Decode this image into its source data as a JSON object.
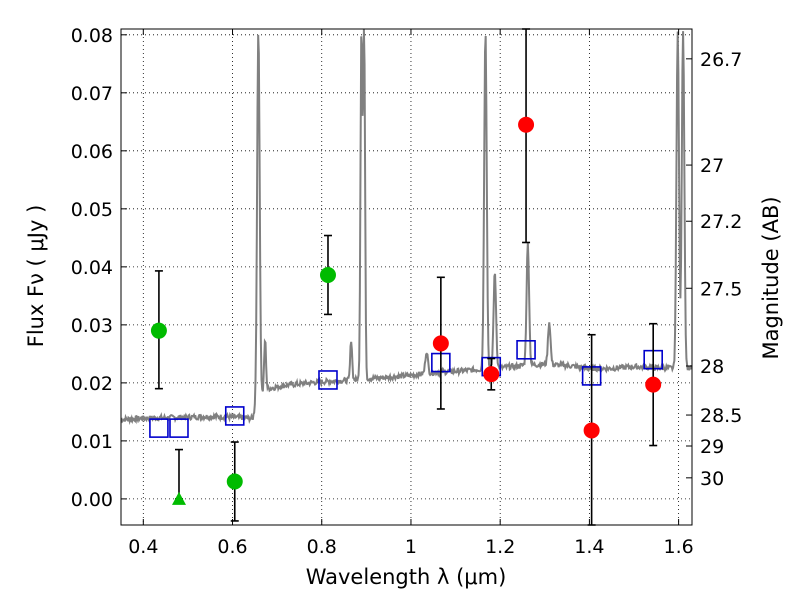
{
  "chart_data": {
    "type": "scatter",
    "xlabel": "Wavelength  λ (μm)",
    "ylabel": "Flux  Fν  ( μJy )",
    "right_ylabel": "Magnitude (AB)",
    "xlim": [
      0.35,
      1.63
    ],
    "ylim": [
      -0.0045,
      0.081
    ],
    "grid": true,
    "x_ticks": [
      {
        "v": 0.4,
        "label": "0.4"
      },
      {
        "v": 0.6,
        "label": "0.6"
      },
      {
        "v": 0.8,
        "label": "0.8"
      },
      {
        "v": 1.0,
        "label": "1"
      },
      {
        "v": 1.2,
        "label": "1.2"
      },
      {
        "v": 1.4,
        "label": "1.4"
      },
      {
        "v": 1.6,
        "label": "1.6"
      }
    ],
    "y_ticks": [
      {
        "v": 0.0,
        "label": "0.00"
      },
      {
        "v": 0.01,
        "label": "0.01"
      },
      {
        "v": 0.02,
        "label": "0.02"
      },
      {
        "v": 0.03,
        "label": "0.03"
      },
      {
        "v": 0.04,
        "label": "0.04"
      },
      {
        "v": 0.05,
        "label": "0.05"
      },
      {
        "v": 0.06,
        "label": "0.06"
      },
      {
        "v": 0.07,
        "label": "0.07"
      },
      {
        "v": 0.08,
        "label": "0.08"
      }
    ],
    "right_ticks": [
      {
        "mag": 26.7,
        "label": "26.7"
      },
      {
        "mag": 27,
        "label": "27"
      },
      {
        "mag": 27.2,
        "label": "27.2"
      },
      {
        "mag": 27.5,
        "label": "27.5"
      },
      {
        "mag": 28,
        "label": "28"
      },
      {
        "mag": 28.5,
        "label": "28.5"
      },
      {
        "mag": 29,
        "label": "29"
      },
      {
        "mag": 30,
        "label": "30"
      }
    ],
    "green_points": [
      {
        "x": 0.435,
        "y": 0.029,
        "lo": 0.019,
        "hi": 0.0393
      },
      {
        "x": 0.605,
        "y": 0.003,
        "lo": -0.0038,
        "hi": 0.0098
      },
      {
        "x": 0.814,
        "y": 0.0386,
        "lo": 0.0318,
        "hi": 0.0454
      }
    ],
    "green_upper_limit": {
      "x": 0.48,
      "y": 0.0,
      "hi": 0.0085
    },
    "red_points": [
      {
        "x": 1.067,
        "y": 0.0268,
        "lo": 0.0155,
        "hi": 0.0382
      },
      {
        "x": 1.18,
        "y": 0.0215,
        "lo": 0.0188,
        "hi": 0.0242
      },
      {
        "x": 1.258,
        "y": 0.0645,
        "lo": 0.0442,
        "hi": 0.081
      },
      {
        "x": 1.405,
        "y": 0.0118,
        "lo": -0.0045,
        "hi": 0.0283
      },
      {
        "x": 1.543,
        "y": 0.0197,
        "lo": 0.0092,
        "hi": 0.0302
      }
    ],
    "model_points": [
      {
        "x": 0.435,
        "y": 0.0122
      },
      {
        "x": 0.48,
        "y": 0.0122
      },
      {
        "x": 0.605,
        "y": 0.0143
      },
      {
        "x": 0.814,
        "y": 0.0205
      },
      {
        "x": 1.067,
        "y": 0.0235
      },
      {
        "x": 1.18,
        "y": 0.0228
      },
      {
        "x": 1.258,
        "y": 0.0257
      },
      {
        "x": 1.405,
        "y": 0.0212
      },
      {
        "x": 1.543,
        "y": 0.024
      }
    ],
    "model_spectrum": {
      "continuum": [
        [
          0.35,
          0.0137
        ],
        [
          0.4,
          0.0139
        ],
        [
          0.45,
          0.014
        ],
        [
          0.5,
          0.0141
        ],
        [
          0.55,
          0.0142
        ],
        [
          0.6,
          0.0141
        ],
        [
          0.63,
          0.014
        ],
        [
          0.645,
          0.0138
        ],
        [
          0.655,
          0.017
        ],
        [
          0.68,
          0.019
        ],
        [
          0.72,
          0.0196
        ],
        [
          0.76,
          0.0199
        ],
        [
          0.8,
          0.0202
        ],
        [
          0.85,
          0.0204
        ],
        [
          0.9,
          0.0207
        ],
        [
          0.95,
          0.021
        ],
        [
          1.0,
          0.0213
        ],
        [
          1.05,
          0.0218
        ],
        [
          1.1,
          0.022
        ],
        [
          1.15,
          0.0223
        ],
        [
          1.2,
          0.0226
        ],
        [
          1.25,
          0.023
        ],
        [
          1.3,
          0.0232
        ],
        [
          1.35,
          0.023
        ],
        [
          1.4,
          0.0225
        ],
        [
          1.45,
          0.0225
        ],
        [
          1.5,
          0.0228
        ],
        [
          1.55,
          0.0226
        ],
        [
          1.6,
          0.0225
        ],
        [
          1.63,
          0.0226
        ]
      ],
      "emission_lines": [
        {
          "x": 0.658,
          "peak": 0.081,
          "w": 0.004
        },
        {
          "x": 0.673,
          "peak": 0.0275,
          "w": 0.003
        },
        {
          "x": 0.866,
          "peak": 0.0275,
          "w": 0.003
        },
        {
          "x": 0.889,
          "peak": 0.081,
          "w": 0.003
        },
        {
          "x": 0.895,
          "peak": 0.081,
          "w": 0.003
        },
        {
          "x": 1.035,
          "peak": 0.0255,
          "w": 0.004
        },
        {
          "x": 1.167,
          "peak": 0.081,
          "w": 0.004
        },
        {
          "x": 1.188,
          "peak": 0.039,
          "w": 0.004
        },
        {
          "x": 1.262,
          "peak": 0.044,
          "w": 0.004
        },
        {
          "x": 1.31,
          "peak": 0.0305,
          "w": 0.004
        },
        {
          "x": 1.598,
          "peak": 0.081,
          "w": 0.004
        },
        {
          "x": 1.61,
          "peak": 0.081,
          "w": 0.004
        }
      ]
    },
    "colors": {
      "green": "#00bb00",
      "red": "#ff0000",
      "model": "#0000cc",
      "spectrum": "#808080",
      "grid": "#000000"
    }
  }
}
